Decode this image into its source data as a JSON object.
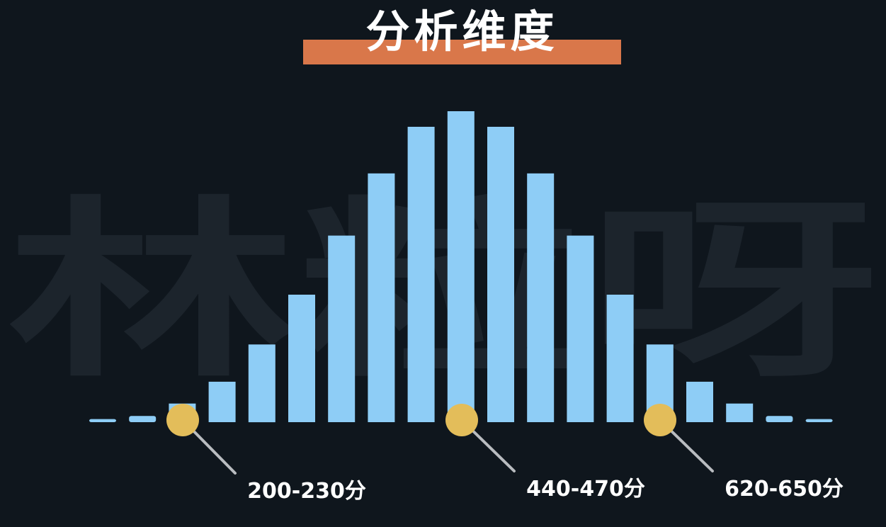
{
  "title": "分析维度",
  "watermark": "林粒呀",
  "colors": {
    "background": "#0f161d",
    "bar": "#8ecdf6",
    "title_band": "#d9774a",
    "marker": "#e3bd5a",
    "leader_line": "#b9bcc0",
    "watermark": "#1c242c"
  },
  "chart_data": {
    "type": "bar",
    "title": "分析维度",
    "xlabel": "",
    "ylabel": "",
    "grid": false,
    "legend": "none",
    "ylim": [
      0,
      100
    ],
    "values": [
      1,
      2,
      6,
      13,
      25,
      41,
      60,
      80,
      95,
      100,
      95,
      80,
      60,
      41,
      25,
      13,
      6,
      2,
      1
    ],
    "annotations": [
      {
        "label": "200-230分",
        "bar_index": 2
      },
      {
        "label": "440-470分",
        "bar_index": 9
      },
      {
        "label": "620-650分",
        "bar_index": 14
      }
    ]
  }
}
